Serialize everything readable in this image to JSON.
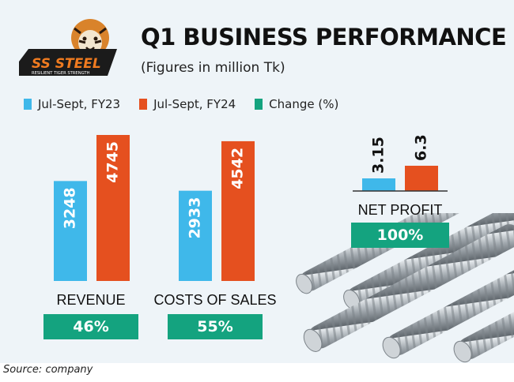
{
  "header": {
    "title": "Q1 BUSINESS PERFORMANCE",
    "subtitle": "(Figures in million Tk)",
    "logo_text": "SS STEEL",
    "logo_tagline": "RESILIENT TIGER STRENGTH"
  },
  "colors": {
    "fy23": "#3fb8ea",
    "fy24": "#e5501f",
    "change": "#14a37f"
  },
  "legend": [
    {
      "label": "Jul-Sept, FY23",
      "color": "#3fb8ea"
    },
    {
      "label": "Jul-Sept, FY24",
      "color": "#e5501f"
    },
    {
      "label": "Change (%)",
      "color": "#14a37f"
    }
  ],
  "chart_data": {
    "type": "bar",
    "title": "Q1 BUSINESS PERFORMANCE",
    "subtitle": "(Figures in million Tk)",
    "categories": [
      "REVENUE",
      "COSTS OF SALES",
      "NET PROFIT"
    ],
    "series": [
      {
        "name": "Jul-Sept, FY23",
        "values": [
          3248,
          2933,
          3.15
        ],
        "labels": [
          "3248",
          "2933",
          "3.15"
        ]
      },
      {
        "name": "Jul-Sept, FY24",
        "values": [
          4745,
          4542,
          6.3
        ],
        "labels": [
          "4745",
          "4542",
          "6.3"
        ]
      }
    ],
    "change": [
      "46%",
      "55%",
      "100%"
    ],
    "legend_position": "top-left",
    "grid": false
  },
  "footer": {
    "source": "Source: company"
  }
}
